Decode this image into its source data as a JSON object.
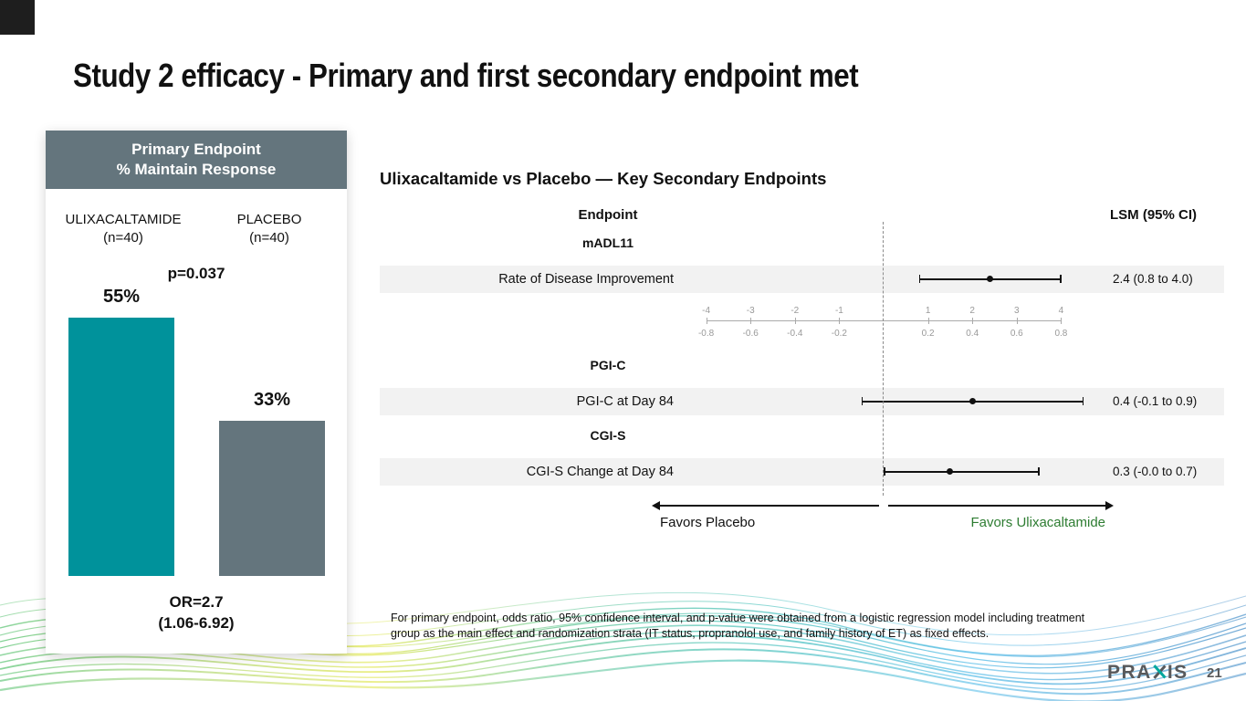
{
  "page": {
    "title": "Study 2 efficacy - Primary and first secondary endpoint met",
    "page_number": "21",
    "logo_left": "PRA",
    "logo_right": "IS",
    "footnote": "For primary endpoint, odds ratio, 95% confidence interval, and p-value were obtained from a logistic regression model including treatment group as the main effect and randomization strata (IT status, propranolol use, and family history of ET) as fixed effects."
  },
  "primary_card": {
    "header_line1": "Primary Endpoint",
    "header_line2": "% Maintain Response",
    "p_value": "p=0.037",
    "odds_ratio": "OR=2.7",
    "odds_ratio_ci": "(1.06-6.92)",
    "groups": [
      {
        "name": "ULIXACALTAMIDE",
        "n_label": "(n=40)"
      },
      {
        "name": "PLACEBO",
        "n_label": "(n=40)"
      }
    ]
  },
  "forest": {
    "title": "Ulixacaltamide vs Placebo — Key Secondary Endpoints",
    "endpoint_header": "Endpoint",
    "lsm_header": "LSM (95% CI)",
    "favors_left": "Favors Placebo",
    "favors_right": "Favors Ulixacaltamide"
  },
  "colors": {
    "teal": "#00929B",
    "slate": "#64757D",
    "favors_green": "#2E7D32",
    "row_bg": "#F2F2F2"
  },
  "chart_data": [
    {
      "type": "bar",
      "title": "Primary Endpoint % Maintain Response",
      "categories": [
        "ULIXACALTAMIDE (n=40)",
        "PLACEBO (n=40)"
      ],
      "values": [
        55,
        33
      ],
      "value_labels": [
        "55%",
        "33%"
      ],
      "bar_colors": [
        "#00929B",
        "#64757D"
      ],
      "annotations": [
        "p=0.037",
        "OR=2.7 (1.06-6.92)"
      ],
      "xlabel": "",
      "ylabel": "% Maintain Response",
      "ylim": [
        0,
        60
      ]
    },
    {
      "type": "scatter",
      "subtype": "forest-plot",
      "title": "Ulixacaltamide vs Placebo — Key Secondary Endpoints",
      "columns": [
        "Endpoint",
        "LSM (95% CI)"
      ],
      "groups": [
        {
          "group": "mADL11",
          "rows": [
            {
              "endpoint": "Rate of Disease Improvement",
              "estimate": 2.4,
              "ci_low": 0.8,
              "ci_high": 4.0,
              "label": "2.4 (0.8 to 4.0)",
              "axis": "top"
            }
          ]
        },
        {
          "group": "PGI-C",
          "rows": [
            {
              "endpoint": "PGI-C at Day 84",
              "estimate": 0.4,
              "ci_low": -0.1,
              "ci_high": 0.9,
              "label": "0.4 (-0.1 to 0.9)",
              "axis": "bottom"
            }
          ]
        },
        {
          "group": "CGI-S",
          "rows": [
            {
              "endpoint": "CGI-S Change at Day 84",
              "estimate": 0.3,
              "ci_low": 0.0,
              "ci_high": 0.7,
              "label": "0.3 (-0.0 to 0.7)",
              "axis": "bottom"
            }
          ]
        }
      ],
      "axis_ticks_top": [
        -4,
        -3,
        -2,
        -1,
        1,
        2,
        3,
        4
      ],
      "axis_ticks_bottom": [
        -0.8,
        -0.6,
        -0.4,
        -0.2,
        0.2,
        0.4,
        0.6,
        0.8
      ],
      "reference_line": 0,
      "favors_left": "Favors Placebo",
      "favors_right": "Favors Ulixacaltamide"
    }
  ]
}
